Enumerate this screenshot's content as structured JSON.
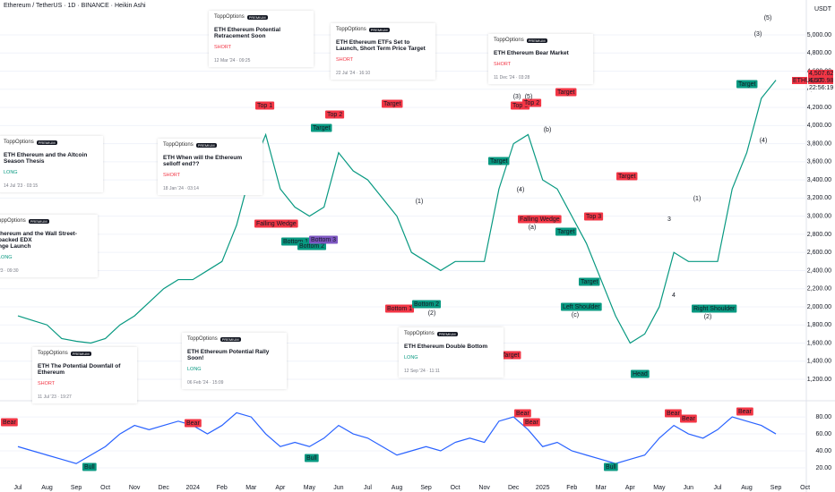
{
  "header": {
    "title": "Ethereum / TetherUS · 1D · BINANCE · Heikin Ashi",
    "unit": "USDT",
    "price_tags": [
      {
        "text": "4,507.62",
        "color": "#f23645"
      },
      {
        "text": "4,500.98",
        "color": "#f23645"
      },
      {
        "text": "ETHUSDT",
        "color": "#f23645"
      },
      {
        "text": "22:56:19",
        "color": "#f23645"
      }
    ]
  },
  "chart_data": [
    {
      "type": "line",
      "color": "#089981",
      "categories": [
        "Jul",
        null,
        "Aug",
        null,
        "Sep",
        null,
        "Oct",
        null,
        "Nov",
        null,
        "Dec",
        null,
        "2024",
        null,
        "Feb",
        null,
        "Mar",
        null,
        "Apr",
        null,
        "May",
        null,
        "Jun",
        null,
        "Jul",
        null,
        "Aug",
        null,
        "Sep",
        null,
        "Oct",
        null,
        "Nov",
        null,
        "Dec",
        null,
        "2025",
        null,
        "Feb",
        null,
        "Mar",
        null,
        "Apr",
        null,
        "May",
        null,
        "Jun",
        null,
        "Jul",
        null,
        "Aug",
        null,
        "Sep",
        null,
        "Oct"
      ],
      "values": [
        1900,
        1850,
        1800,
        1650,
        1620,
        1600,
        1650,
        1800,
        1900,
        2050,
        2200,
        2300,
        2300,
        2400,
        2500,
        2900,
        3500,
        3900,
        3300,
        3100,
        3000,
        3100,
        3700,
        3500,
        3400,
        3200,
        3000,
        2600,
        2500,
        2400,
        2500,
        2500,
        2500,
        3300,
        3800,
        3900,
        3400,
        3300,
        3000,
        2700,
        2300,
        1900,
        1600,
        1700,
        2000,
        2600,
        2500,
        2500,
        2500,
        3300,
        3700,
        4300,
        4500,
        null,
        null
      ],
      "ylim": [
        993,
        5385
      ],
      "yticks": [
        {
          "value": 1200,
          "label": "1,200.00"
        },
        {
          "value": 1400,
          "label": "1,400.00"
        },
        {
          "value": 1600,
          "label": "1,600.00"
        },
        {
          "value": 1800,
          "label": "1,800.00"
        },
        {
          "value": 2000,
          "label": "2,000.00"
        },
        {
          "value": 2200,
          "label": "2,200.00"
        },
        {
          "value": 2400,
          "label": "2,400.00"
        },
        {
          "value": 2600,
          "label": "2,600.00"
        },
        {
          "value": 2800,
          "label": "2,800.00"
        },
        {
          "value": 3000,
          "label": "3,000.00"
        },
        {
          "value": 3200,
          "label": "3,200.00"
        },
        {
          "value": 3400,
          "label": "3,400.00"
        },
        {
          "value": 3600,
          "label": "3,600.00"
        },
        {
          "value": 3800,
          "label": "3,800.00"
        },
        {
          "value": 4000,
          "label": "4,000.00"
        },
        {
          "value": 4200,
          "label": "4,200.00"
        },
        {
          "value": 4400,
          "label": "4,400.00"
        },
        {
          "value": 4600,
          "label": "4,600.00"
        },
        {
          "value": 4800,
          "label": "4,800.00"
        },
        {
          "value": 5000,
          "label": "5,000.00"
        }
      ],
      "annotations": [
        {
          "text": "Top 1",
          "color": "#f23645"
        },
        {
          "text": "Top 2",
          "color": "#f23645"
        },
        {
          "text": "Target",
          "color": "#089981"
        },
        {
          "text": "Target",
          "color": "#f23645"
        },
        {
          "text": "Falling Wedge",
          "color": "#f23645"
        },
        {
          "text": "Bottom 1",
          "color": "#089981"
        },
        {
          "text": "Bottom 2",
          "color": "#089981"
        },
        {
          "text": "Bottom 3",
          "color": "#7e57c2"
        },
        {
          "text": "Bottom 1",
          "color": "#f23645"
        },
        {
          "text": "Bottom 2",
          "color": "#089981"
        },
        {
          "text": "Target",
          "color": "#089981"
        },
        {
          "text": "Top 1",
          "color": "#f23645"
        },
        {
          "text": "Top 2",
          "color": "#f23645"
        },
        {
          "text": "Target",
          "color": "#f23645"
        },
        {
          "text": "Falling Wedge",
          "color": "#f23645"
        },
        {
          "text": "Top 3",
          "color": "#f23645"
        },
        {
          "text": "Target",
          "color": "#089981"
        },
        {
          "text": "Target",
          "color": "#f23645"
        },
        {
          "text": "Target",
          "color": "#089981"
        },
        {
          "text": "Left Shoulder",
          "color": "#089981"
        },
        {
          "text": "Head",
          "color": "#089981"
        },
        {
          "text": "Right Shoulder",
          "color": "#089981"
        },
        {
          "text": "Target",
          "color": "#089981"
        },
        {
          "text": "Target",
          "color": "#f23645"
        }
      ],
      "wave_labels": [
        "(1)",
        "(2)",
        "(3)",
        "(5)",
        "(4)",
        "(a)",
        "(b)",
        "(c)",
        "(1)",
        "(2)",
        "(3)",
        "(4)",
        "(5)",
        "3",
        "4"
      ]
    },
    {
      "type": "line",
      "color": "#2962ff",
      "categories": [
        "Jul",
        null,
        "Aug",
        null,
        "Sep",
        null,
        "Oct",
        null,
        "Nov",
        null,
        "Dec",
        null,
        "2024",
        null,
        "Feb",
        null,
        "Mar",
        null,
        "Apr",
        null,
        "May",
        null,
        "Jun",
        null,
        "Jul",
        null,
        "Aug",
        null,
        "Sep",
        null,
        "Oct",
        null,
        "Nov",
        null,
        "Dec",
        null,
        "2025",
        null,
        "Feb",
        null,
        "Mar",
        null,
        "Apr",
        null,
        "May",
        null,
        "Jun",
        null,
        "Jul",
        null,
        "Aug",
        null,
        "Sep",
        null,
        "Oct"
      ],
      "values": [
        45,
        40,
        35,
        30,
        25,
        35,
        45,
        60,
        70,
        65,
        70,
        75,
        70,
        60,
        70,
        85,
        80,
        60,
        45,
        50,
        45,
        55,
        70,
        60,
        55,
        45,
        35,
        40,
        45,
        40,
        50,
        55,
        50,
        75,
        80,
        65,
        45,
        50,
        40,
        35,
        30,
        25,
        30,
        35,
        55,
        70,
        60,
        55,
        65,
        80,
        75,
        70,
        60,
        null,
        null
      ],
      "ylim": [
        2,
        97
      ],
      "yticks": [
        {
          "value": 20,
          "label": "20.00"
        },
        {
          "value": 40,
          "label": "40.00"
        },
        {
          "value": 60,
          "label": "60.00"
        },
        {
          "value": 80,
          "label": "80.00"
        }
      ],
      "annotations": [
        {
          "text": "Bear",
          "color": "#f23645"
        },
        {
          "text": "Bull",
          "color": "#089981"
        },
        {
          "text": "Bear",
          "color": "#f23645"
        },
        {
          "text": "Bull",
          "color": "#089981"
        },
        {
          "text": "Bear",
          "color": "#f23645"
        },
        {
          "text": "Bear",
          "color": "#f23645"
        },
        {
          "text": "Bull",
          "color": "#089981"
        },
        {
          "text": "Bear",
          "color": "#f23645"
        },
        {
          "text": "Bear",
          "color": "#f23645"
        },
        {
          "text": "Bear",
          "color": "#f23645"
        }
      ]
    }
  ],
  "ideas": [
    {
      "author": "ToppOptions",
      "badge": "PREMIUM",
      "title": "ETH Ethereum Potential Retracement Soon",
      "side": "SHORT",
      "date": "12 Mar '24 · 09:25"
    },
    {
      "author": "ToppOptions",
      "badge": "PREMIUM",
      "title": "ETH Ethereum ETFs Set to Launch, Short Term Price Target",
      "side": "SHORT",
      "date": "22 Jul '24 · 16:10"
    },
    {
      "author": "ToppOptions",
      "badge": "PREMIUM",
      "title": "ETH Ethereum Bear Market",
      "side": "SHORT",
      "date": "11 Dec '24 · 03:28"
    },
    {
      "author": "ToppOptions",
      "badge": "PREMIUM",
      "title": "ETH Ethereum and the Altcoin Season Thesis",
      "side": "LONG",
      "date": "14 Jul '23 · 03:15"
    },
    {
      "author": "ToppOptions",
      "badge": "PREMIUM",
      "title": "ETH When will the Ethereum selloff end??",
      "side": "SHORT",
      "date": "18 Jan '24 · 03:14"
    },
    {
      "author": "oppOptions",
      "badge": "PREMIUM",
      "title": "thereum and the Wall Street-backed EDX\nnge Launch",
      "side": "LONG",
      "date": "23 · 09:30"
    },
    {
      "author": "ToppOptions",
      "badge": "PREMIUM",
      "title": "ETH The Potential Downfall of Ethereum",
      "side": "SHORT",
      "date": "11 Jul '23 · 19:27"
    },
    {
      "author": "ToppOptions",
      "badge": "PREMIUM",
      "title": "ETH Ethereum Potential Rally Soon!",
      "side": "LONG",
      "date": "06 Feb '24 · 15:09"
    },
    {
      "author": "ToppOptions",
      "badge": "PREMIUM",
      "title": "ETH Ethereum Double Bottom",
      "side": "LONG",
      "date": "12 Sep '24 · 11:11"
    }
  ]
}
